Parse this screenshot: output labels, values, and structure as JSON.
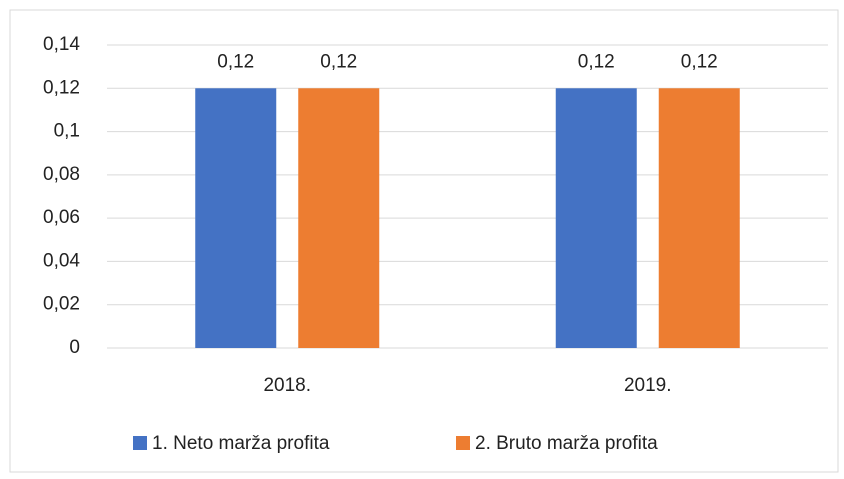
{
  "chart_data": {
    "type": "bar",
    "categories": [
      "2018.",
      "2019."
    ],
    "series": [
      {
        "name": "1. Neto marža profita",
        "color": "#4472c4",
        "values": [
          0.12,
          0.12
        ],
        "value_labels": [
          "0,12",
          "0,12"
        ]
      },
      {
        "name": "2. Bruto marža profita",
        "color": "#ed7d31",
        "values": [
          0.12,
          0.12
        ],
        "value_labels": [
          "0,12",
          "0,12"
        ]
      }
    ],
    "ylim": [
      0,
      0.14
    ],
    "yticks": [
      0,
      {
        "value": 0.02,
        "label": "0,02"
      },
      {
        "value": 0.04,
        "label": "0,04"
      },
      {
        "value": 0.06,
        "label": "0,06"
      },
      {
        "value": 0.08,
        "label": "0,08"
      },
      {
        "value": 0.1,
        "label": "0,1"
      },
      {
        "value": 0.12,
        "label": "0,12"
      },
      {
        "value": 0.14,
        "label": "0,14"
      }
    ],
    "grid": true,
    "legend": "bottom"
  }
}
